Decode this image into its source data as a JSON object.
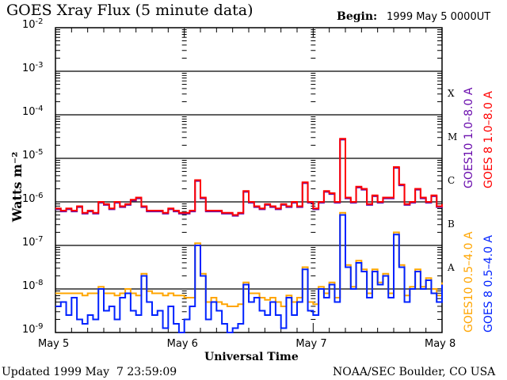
{
  "header": {
    "title": "GOES Xray Flux (5 minute data)",
    "begin_label": "Begin:",
    "begin_value": "1999 May 5 0000UT"
  },
  "footer": {
    "updated": "Updated 1999 May  7 23:59:09",
    "credit": "NOAA/SEC Boulder, CO USA"
  },
  "chart_data": {
    "type": "line",
    "title": "GOES Xray Flux (5 minute data)",
    "xlabel": "Universal Time",
    "ylabel": "Watts m⁻²",
    "x_units": "hours since 1999 May 5 0000UT (hourly samples)",
    "xlim": [
      0,
      72
    ],
    "ylim_log10": [
      -9,
      -2
    ],
    "yscale": "log",
    "y_ticks": [
      {
        "base": "10",
        "exp": "-2"
      },
      {
        "base": "10",
        "exp": "-3"
      },
      {
        "base": "10",
        "exp": "-4"
      },
      {
        "base": "10",
        "exp": "-5"
      },
      {
        "base": "10",
        "exp": "-6"
      },
      {
        "base": "10",
        "exp": "-7"
      },
      {
        "base": "10",
        "exp": "-8"
      },
      {
        "base": "10",
        "exp": "-9"
      }
    ],
    "x_ticks": [
      "May 5",
      "May 6",
      "May 7",
      "May 8"
    ],
    "flare_classes": [
      "X",
      "M",
      "C",
      "B",
      "A"
    ],
    "grid": "horizontal at decades",
    "legend_placement": "right (rotated)",
    "series": [
      {
        "name": "GOES10 1.0–8.0 A",
        "color": "#6a0dad",
        "values_log10": [
          -6.17,
          -6.22,
          -6.17,
          -6.22,
          -6.12,
          -6.27,
          -6.22,
          -6.27,
          -6.02,
          -6.07,
          -6.17,
          -6.02,
          -6.12,
          -6.07,
          -5.97,
          -5.92,
          -6.12,
          -6.22,
          -6.22,
          -6.22,
          -6.27,
          -6.17,
          -6.22,
          -6.27,
          -6.27,
          -6.22,
          -5.52,
          -5.92,
          -6.22,
          -6.22,
          -6.22,
          -6.27,
          -6.27,
          -6.32,
          -6.27,
          -5.77,
          -6.02,
          -6.12,
          -6.17,
          -6.07,
          -6.12,
          -6.17,
          -6.07,
          -6.12,
          -6.02,
          -6.12,
          -5.57,
          -6.02,
          -6.17,
          -6.02,
          -5.77,
          -5.82,
          -6.02,
          -4.57,
          -5.92,
          -6.02,
          -5.67,
          -5.72,
          -6.07,
          -5.87,
          -6.02,
          -5.92,
          -5.92,
          -5.22,
          -5.62,
          -6.07,
          -6.02,
          -5.72,
          -5.92,
          -6.02,
          -5.87,
          -6.12,
          -6.07
        ]
      },
      {
        "name": "GOES 8 1.0–8.0 A",
        "color": "#ff0000",
        "values_log10": [
          -6.15,
          -6.2,
          -6.15,
          -6.2,
          -6.1,
          -6.25,
          -6.2,
          -6.25,
          -6.0,
          -6.05,
          -6.15,
          -6.0,
          -6.1,
          -6.05,
          -5.95,
          -5.9,
          -6.1,
          -6.2,
          -6.2,
          -6.2,
          -6.25,
          -6.15,
          -6.2,
          -6.25,
          -6.25,
          -6.2,
          -5.5,
          -5.9,
          -6.2,
          -6.2,
          -6.2,
          -6.25,
          -6.25,
          -6.3,
          -6.25,
          -5.75,
          -6.0,
          -6.1,
          -6.15,
          -6.05,
          -6.1,
          -6.15,
          -6.05,
          -6.1,
          -6.0,
          -6.1,
          -5.55,
          -6.0,
          -6.15,
          -6.0,
          -5.75,
          -5.8,
          -6.0,
          -4.55,
          -5.9,
          -6.0,
          -5.65,
          -5.7,
          -6.05,
          -5.85,
          -6.0,
          -5.9,
          -5.9,
          -5.2,
          -5.6,
          -6.05,
          -6.0,
          -5.7,
          -5.9,
          -6.0,
          -5.85,
          -6.1,
          -6.05
        ]
      },
      {
        "name": "GOES10 0.5–4.0 A",
        "color": "#ffa500",
        "values_log10": [
          -8.1,
          -8.1,
          -8.1,
          -8.1,
          -8.1,
          -8.15,
          -8.1,
          -8.1,
          -7.95,
          -8.1,
          -8.1,
          -8.15,
          -8.1,
          -8.0,
          -8.1,
          -8.15,
          -7.65,
          -8.05,
          -8.1,
          -8.1,
          -8.15,
          -8.1,
          -8.15,
          -8.15,
          -8.2,
          -8.2,
          -6.95,
          -7.65,
          -8.3,
          -8.2,
          -8.3,
          -8.35,
          -8.4,
          -8.4,
          -8.35,
          -7.85,
          -8.1,
          -8.1,
          -8.2,
          -8.25,
          -8.2,
          -8.3,
          -8.4,
          -8.15,
          -8.3,
          -8.2,
          -7.5,
          -8.3,
          -8.35,
          -7.95,
          -8.1,
          -7.85,
          -8.2,
          -6.25,
          -7.45,
          -7.95,
          -7.35,
          -7.55,
          -8.1,
          -7.55,
          -7.85,
          -7.65,
          -8.1,
          -6.7,
          -7.45,
          -8.15,
          -7.95,
          -7.55,
          -7.95,
          -7.75,
          -8.0,
          -8.15,
          -7.85
        ]
      },
      {
        "name": "GOES 8 0.5–4.0 A",
        "color": "#0022ff",
        "values_log10": [
          -8.4,
          -8.3,
          -8.6,
          -8.2,
          -8.7,
          -8.8,
          -8.6,
          -8.7,
          -8.0,
          -8.5,
          -8.4,
          -8.7,
          -8.2,
          -8.1,
          -8.5,
          -8.6,
          -7.7,
          -8.3,
          -8.6,
          -8.5,
          -8.9,
          -8.4,
          -8.8,
          -9.0,
          -8.7,
          -8.4,
          -7.0,
          -7.7,
          -8.7,
          -8.3,
          -8.5,
          -8.8,
          -9.0,
          -8.9,
          -8.8,
          -7.9,
          -8.3,
          -8.2,
          -8.5,
          -8.6,
          -8.3,
          -8.6,
          -8.9,
          -8.2,
          -8.6,
          -8.3,
          -7.55,
          -8.5,
          -8.6,
          -8.0,
          -8.2,
          -7.9,
          -8.3,
          -6.3,
          -7.5,
          -8.0,
          -7.4,
          -7.6,
          -8.2,
          -7.6,
          -7.9,
          -7.7,
          -8.2,
          -6.75,
          -7.5,
          -8.3,
          -8.0,
          -7.6,
          -8.0,
          -7.8,
          -8.1,
          -8.3,
          -7.9
        ]
      }
    ]
  }
}
